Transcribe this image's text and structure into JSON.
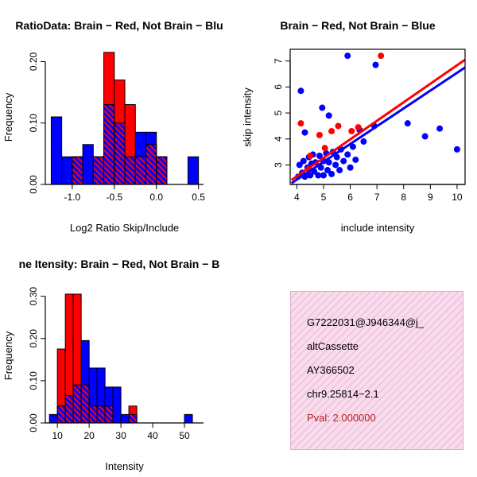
{
  "colors": {
    "red": "#FF0000",
    "blue": "#0000FF",
    "axis": "#000000",
    "info_bg": "#F8DCEC",
    "info_hatch": "#EFC0DD",
    "pval": "#B22222"
  },
  "chart_data": [
    {
      "type": "bar",
      "subtype": "overlaid-histogram",
      "title": "RatioData: Brain − Red, Not Brain − Blu",
      "xlabel": "Log2 Ratio Skip/Include",
      "ylabel": "Frequency",
      "xlim": [
        -1.32,
        0.56
      ],
      "ylim": [
        0,
        0.22
      ],
      "xticks": [
        -1.0,
        -0.5,
        0.0,
        0.5
      ],
      "xtick_labels": [
        "-1.0",
        "-0.5",
        "0.0",
        "0.5"
      ],
      "yticks": [
        0,
        0.1,
        0.2
      ],
      "ytick_labels": [
        "0.00",
        "0.10",
        "0.20"
      ],
      "bin_start": -1.25,
      "bin_width": 0.125,
      "series": [
        {
          "name": "Not Brain",
          "color": "#0000FF",
          "values": [
            0.11,
            0.045,
            0.045,
            0.065,
            0.045,
            0.13,
            0.1,
            0.045,
            0.085,
            0.085,
            0.045,
            0,
            0,
            0.045
          ]
        },
        {
          "name": "Brain",
          "color": "#FF0000",
          "values": [
            0,
            0,
            0.045,
            0,
            0.045,
            0.215,
            0.17,
            0.13,
            0.045,
            0.065,
            0.045,
            0,
            0,
            0
          ]
        }
      ]
    },
    {
      "type": "scatter",
      "title": "Brain − Red, Not Brain − Blue",
      "xlabel": "include intensity",
      "ylabel": "skip intensity",
      "xlim": [
        3.75,
        10.3
      ],
      "ylim": [
        2.25,
        7.45
      ],
      "xticks": [
        4,
        5,
        6,
        7,
        8,
        9,
        10
      ],
      "xtick_labels": [
        "4",
        "5",
        "6",
        "7",
        "8",
        "9",
        "10"
      ],
      "yticks": [
        3,
        4,
        5,
        6,
        7
      ],
      "ytick_labels": [
        "3",
        "4",
        "5",
        "6",
        "7"
      ],
      "series": [
        {
          "name": "Not Brain",
          "color": "#0000FF",
          "points": [
            [
              4.05,
              2.55
            ],
            [
              4.1,
              3.0
            ],
            [
              4.2,
              2.7
            ],
            [
              4.25,
              3.15
            ],
            [
              4.3,
              2.55
            ],
            [
              4.3,
              4.25
            ],
            [
              4.4,
              2.9
            ],
            [
              4.45,
              3.3
            ],
            [
              4.5,
              2.6
            ],
            [
              4.55,
              3.05
            ],
            [
              4.6,
              3.4
            ],
            [
              4.65,
              2.75
            ],
            [
              4.7,
              3.1
            ],
            [
              4.8,
              2.6
            ],
            [
              4.85,
              3.35
            ],
            [
              4.9,
              2.9
            ],
            [
              4.95,
              5.2
            ],
            [
              5.0,
              3.15
            ],
            [
              5.0,
              2.6
            ],
            [
              5.1,
              3.45
            ],
            [
              5.15,
              2.8
            ],
            [
              5.2,
              3.1
            ],
            [
              5.2,
              4.9
            ],
            [
              5.3,
              2.65
            ],
            [
              5.35,
              3.5
            ],
            [
              5.45,
              3.0
            ],
            [
              5.5,
              3.3
            ],
            [
              5.6,
              2.8
            ],
            [
              5.65,
              3.6
            ],
            [
              5.75,
              3.15
            ],
            [
              5.9,
              3.4
            ],
            [
              5.9,
              7.2
            ],
            [
              6.0,
              2.9
            ],
            [
              6.1,
              3.7
            ],
            [
              6.2,
              3.2
            ],
            [
              6.35,
              4.35
            ],
            [
              6.5,
              3.9
            ],
            [
              6.9,
              4.5
            ],
            [
              6.95,
              6.85
            ],
            [
              8.15,
              4.6
            ],
            [
              8.8,
              4.1
            ],
            [
              9.35,
              4.4
            ],
            [
              10.0,
              3.6
            ],
            [
              4.15,
              5.85
            ]
          ]
        },
        {
          "name": "Brain",
          "color": "#FF0000",
          "points": [
            [
              4.15,
              4.6
            ],
            [
              4.45,
              2.85
            ],
            [
              4.5,
              3.35
            ],
            [
              4.85,
              4.15
            ],
            [
              5.05,
              3.65
            ],
            [
              5.3,
              4.3
            ],
            [
              5.55,
              4.5
            ],
            [
              6.05,
              4.3
            ],
            [
              6.3,
              4.45
            ],
            [
              7.15,
              7.2
            ]
          ]
        }
      ],
      "fit_lines": [
        {
          "name": "not-brain-fit",
          "color": "#0000FF",
          "x1": 3.8,
          "y1": 2.3,
          "x2": 10.3,
          "y2": 6.75
        },
        {
          "name": "brain-fit",
          "color": "#FF0000",
          "x1": 3.8,
          "y1": 2.42,
          "x2": 10.3,
          "y2": 7.05
        }
      ]
    },
    {
      "type": "bar",
      "subtype": "overlaid-histogram",
      "title": "ne Itensity: Brain − Red, Not Brain − B",
      "xlabel": "Intensity",
      "ylabel": "Frequency",
      "xlim": [
        6.2,
        56
      ],
      "ylim": [
        0,
        0.32
      ],
      "xticks": [
        10,
        20,
        30,
        40,
        50
      ],
      "xtick_labels": [
        "10",
        "20",
        "30",
        "40",
        "50"
      ],
      "yticks": [
        0,
        0.1,
        0.2,
        0.3
      ],
      "ytick_labels": [
        "0.00",
        "0.10",
        "0.20",
        "0.30"
      ],
      "bin_start": 7.5,
      "bin_width": 2.5,
      "series": [
        {
          "name": "Not Brain",
          "color": "#0000FF",
          "values": [
            0.02,
            0.04,
            0.065,
            0.09,
            0.195,
            0.13,
            0.13,
            0.085,
            0.085,
            0.02,
            0.02,
            0,
            0,
            0,
            0,
            0,
            0,
            0.02
          ]
        },
        {
          "name": "Brain",
          "color": "#FF0000",
          "values": [
            0,
            0.175,
            0.305,
            0.305,
            0.09,
            0.04,
            0.04,
            0.04,
            0,
            0,
            0.04,
            0,
            0,
            0,
            0,
            0,
            0,
            0
          ]
        }
      ]
    },
    {
      "type": "text",
      "lines": [
        "G7222031@J946344@j_",
        "altCassette",
        "AY366502",
        "chr9.25814−2.1",
        "Pval: 2.000000"
      ]
    }
  ]
}
